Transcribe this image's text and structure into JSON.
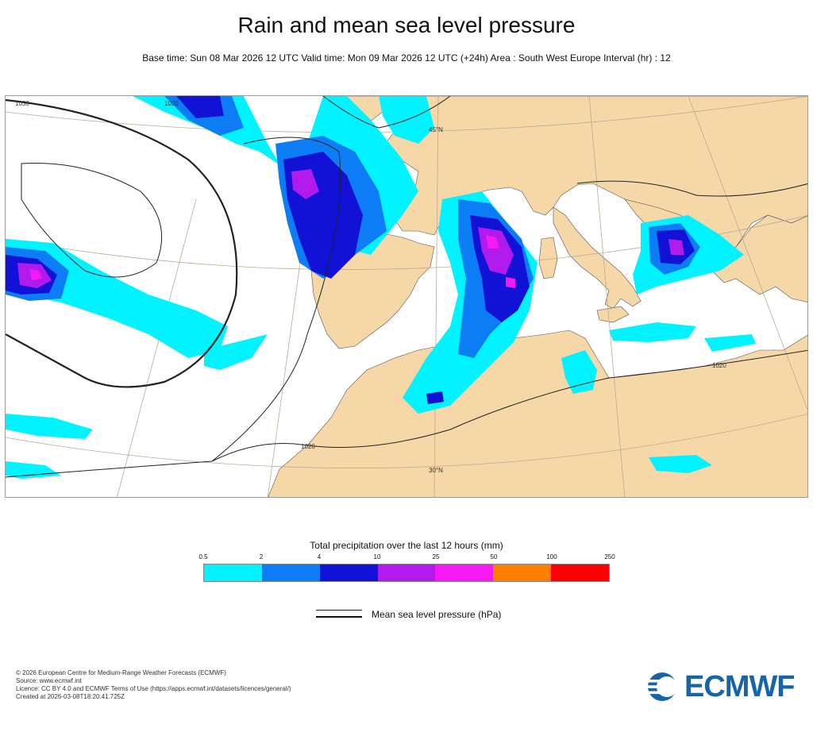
{
  "header": {
    "title": "Rain and mean sea level pressure",
    "subtitle": "Base time: Sun 08 Mar 2026 12 UTC Valid time: Mon 09 Mar 2026 12 UTC (+24h) Area : South West Europe Interval (hr) : 12"
  },
  "map": {
    "isobar_labels": [
      "1030",
      "1020",
      "1020",
      "1030"
    ],
    "grid_labels": [
      "45°N",
      "30°N"
    ],
    "colors": {
      "land": "#f6d7a7",
      "sea": "#ffffff",
      "isobar": "#222222",
      "graticule": "#b8ab94"
    }
  },
  "legend": {
    "title": "Total precipitation over the last 12 hours (mm)",
    "ticks": [
      "0.5",
      "2",
      "4",
      "10",
      "25",
      "50",
      "100",
      "250"
    ],
    "colors": [
      "#00f3ff",
      "#0c7df5",
      "#1212d6",
      "#b01bec",
      "#f519f3",
      "#ff8000",
      "#ff0000"
    ],
    "line_label": "Mean sea level pressure (hPa)"
  },
  "credits": {
    "lines": [
      "© 2026 European Centre for Medium-Range Weather Forecasts (ECMWF)",
      "Source: www.ecmwf.int",
      "Licence: CC BY 4.0 and ECMWF Terms of Use (https://apps.ecmwf.int/datasets/licences/general/)",
      "Created at 2026-03-08T18:20:41.725Z"
    ],
    "logo_text": "ECMWF",
    "logo_color": "#1565a8"
  }
}
